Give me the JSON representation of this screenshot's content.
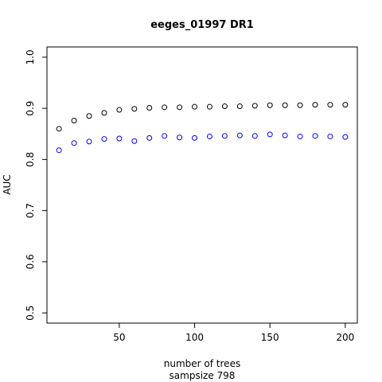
{
  "chart_data": {
    "type": "scatter",
    "title": "eeges_01997 DR1",
    "xlabel": "number of trees",
    "xlabel2": "sampsize 798",
    "ylabel": "AUC",
    "xlim": [
      2,
      208
    ],
    "ylim": [
      0.48,
      1.02
    ],
    "xticks": [
      50,
      100,
      150,
      200
    ],
    "yticks": [
      0.5,
      0.6,
      0.7,
      0.8,
      0.9,
      1.0
    ],
    "xtick_labels": [
      "50",
      "100",
      "150",
      "200"
    ],
    "ytick_labels": [
      "0.5",
      "0.6",
      "0.7",
      "0.8",
      "0.9",
      "1.0"
    ],
    "grid": false,
    "legend": "none",
    "marker": "open-circle",
    "x": [
      10,
      20,
      30,
      40,
      50,
      60,
      70,
      80,
      90,
      100,
      110,
      120,
      130,
      140,
      150,
      160,
      170,
      180,
      190,
      200
    ],
    "series": [
      {
        "color": "#000000",
        "values": [
          0.86,
          0.876,
          0.885,
          0.891,
          0.897,
          0.899,
          0.901,
          0.902,
          0.902,
          0.903,
          0.903,
          0.904,
          0.904,
          0.905,
          0.906,
          0.906,
          0.906,
          0.907,
          0.907,
          0.907
        ]
      },
      {
        "color": "#0000ff",
        "values": [
          0.818,
          0.832,
          0.835,
          0.84,
          0.841,
          0.836,
          0.842,
          0.846,
          0.843,
          0.842,
          0.845,
          0.846,
          0.847,
          0.846,
          0.849,
          0.847,
          0.845,
          0.846,
          0.845,
          0.844
        ]
      }
    ]
  }
}
